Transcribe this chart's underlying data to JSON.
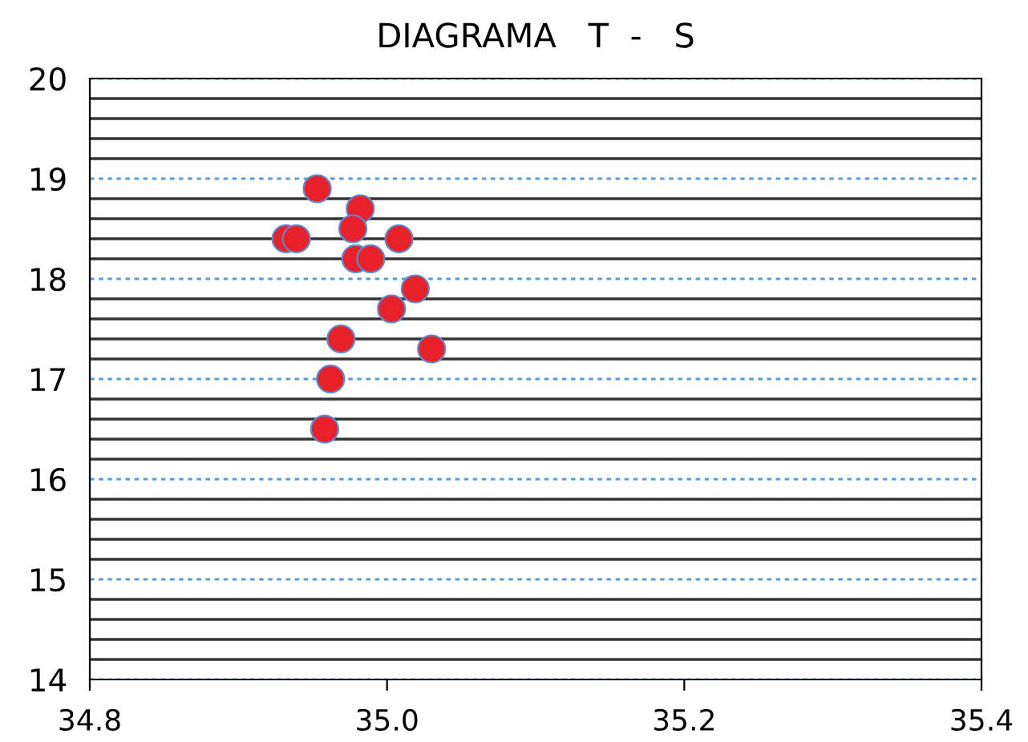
{
  "chart_data": {
    "type": "scatter",
    "title": "DIAGRAMA   T  -   S",
    "x": [
      34.953,
      34.982,
      34.977,
      34.932,
      34.939,
      35.008,
      34.979,
      34.989,
      35.019,
      35.003,
      34.969,
      35.03,
      34.962,
      34.958
    ],
    "values": [
      18.9,
      18.7,
      18.5,
      18.4,
      18.4,
      18.4,
      18.2,
      18.2,
      17.9,
      17.7,
      17.4,
      17.3,
      17.0,
      16.5
    ],
    "color": "#e8202a",
    "marker": "circle",
    "xlim": [
      34.8,
      35.4
    ],
    "xticks": [
      {
        "value": 34.8,
        "label": "34.8"
      },
      {
        "value": 35.0,
        "label": "35.0"
      },
      {
        "value": 35.2,
        "label": "35.2"
      },
      {
        "value": 35.4,
        "label": "35.4"
      }
    ],
    "ylim": [
      14,
      20
    ],
    "yticks": [
      14,
      15,
      16,
      17,
      18,
      19,
      20
    ],
    "grid": "y",
    "legend": false
  }
}
